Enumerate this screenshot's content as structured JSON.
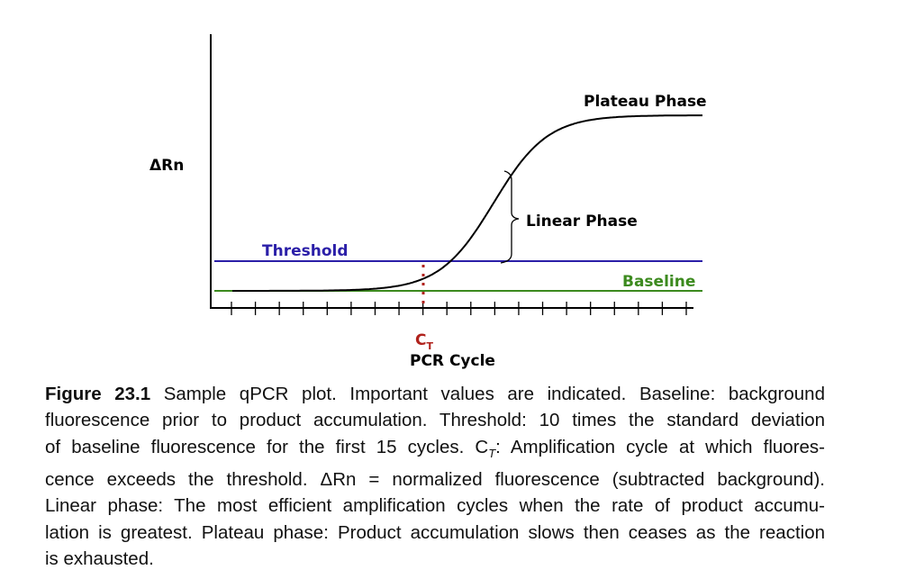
{
  "chart_data": {
    "type": "line",
    "ylabel": "ΔRn",
    "xlabel": "PCR Cycle",
    "x_tick_count": 20,
    "ct_tick_index": 9,
    "ct_label": "C",
    "ct_subscript": "T",
    "threshold_label": "Threshold",
    "baseline_label": "Baseline",
    "linear_phase_label": "Linear Phase",
    "plateau_phase_label": "Plateau Phase",
    "colors": {
      "threshold": "#2b1fa8",
      "baseline": "#3c8a1e",
      "curve": "#000000",
      "ct": "#b0221c",
      "axis": "#000000"
    }
  },
  "caption": {
    "figure_label": "Figure 23.1",
    "lines": [
      " Sample qPCR plot. Important values are indicated. Baseline: background",
      "fluorescence prior to product accumulation. Threshold: 10 times the standard deviation",
      "of baseline fluorescence for the first 15 cycles. C",
      ": Amplification cycle at which fluores-",
      "cence exceeds the threshold. ΔRn = normalized fluorescence (subtracted background).",
      "Linear phase: The most efficient amplification cycles when the rate of product accumu-",
      "lation is greatest. Plateau phase: Product accumulation slows then ceases as the reaction",
      "is exhausted."
    ],
    "ct_sub": "T"
  }
}
